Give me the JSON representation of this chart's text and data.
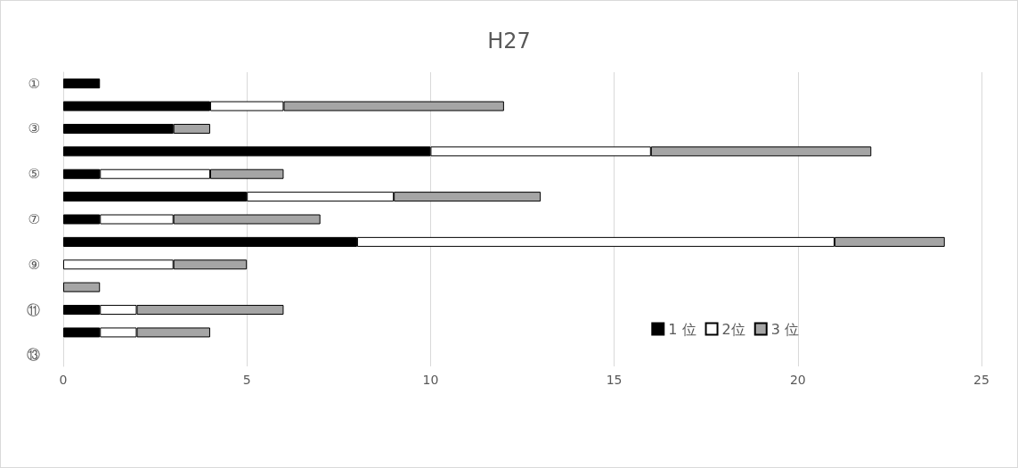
{
  "chart_data": {
    "type": "bar",
    "title": "H27",
    "orientation": "horizontal",
    "stacked": true,
    "categories": [
      "①",
      null,
      "③",
      null,
      "⑤",
      null,
      "⑦",
      null,
      "⑨",
      null,
      "⑪",
      null,
      "⑬"
    ],
    "series": [
      {
        "name": "1 位",
        "color": "#000000",
        "values": [
          1,
          4,
          3,
          10,
          1,
          5,
          1,
          8,
          0,
          0,
          1,
          1,
          0
        ]
      },
      {
        "name": "2位",
        "color": "#ffffff",
        "values": [
          0,
          2,
          0,
          6,
          3,
          4,
          2,
          13,
          3,
          0,
          1,
          1,
          0
        ]
      },
      {
        "name": "3 位",
        "color": "#a5a5a5",
        "values": [
          0,
          6,
          1,
          6,
          2,
          4,
          4,
          3,
          2,
          1,
          4,
          2,
          0
        ]
      }
    ],
    "xlim": [
      0,
      25
    ],
    "xticks": [
      0,
      5,
      10,
      15,
      20,
      25
    ],
    "grid": "x",
    "legend": "bottom right"
  }
}
